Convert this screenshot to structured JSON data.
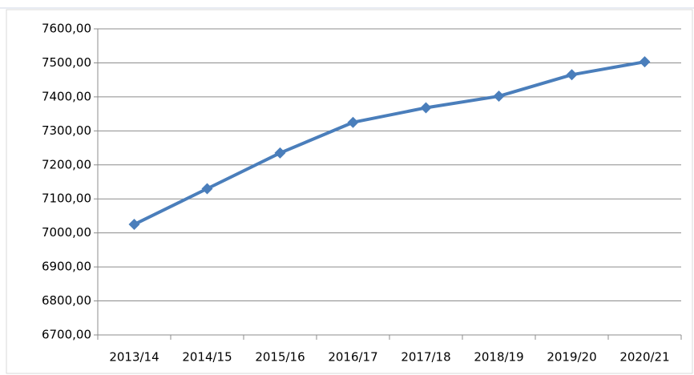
{
  "chart_data": {
    "type": "line",
    "categories": [
      "2013/14",
      "2014/15",
      "2015/16",
      "2016/17",
      "2017/18",
      "2018/19",
      "2019/20",
      "2020/21"
    ],
    "series": [
      {
        "color": "#4a7ebb",
        "values": [
          7025,
          7130,
          7235,
          7325,
          7368,
          7402,
          7465,
          7503
        ]
      }
    ],
    "ylim": [
      6700,
      7600
    ],
    "yticks": [
      {
        "value": 6700,
        "label": "6700,00"
      },
      {
        "value": 6800,
        "label": "6800,00"
      },
      {
        "value": 6900,
        "label": "6900,00"
      },
      {
        "value": 7000,
        "label": "7000,00"
      },
      {
        "value": 7100,
        "label": "7100,00"
      },
      {
        "value": 7200,
        "label": "7200,00"
      },
      {
        "value": 7300,
        "label": "7300,00"
      },
      {
        "value": 7400,
        "label": "7400,00"
      },
      {
        "value": 7500,
        "label": "7500,00"
      },
      {
        "value": 7600,
        "label": "7600,00"
      }
    ],
    "grid": true
  }
}
